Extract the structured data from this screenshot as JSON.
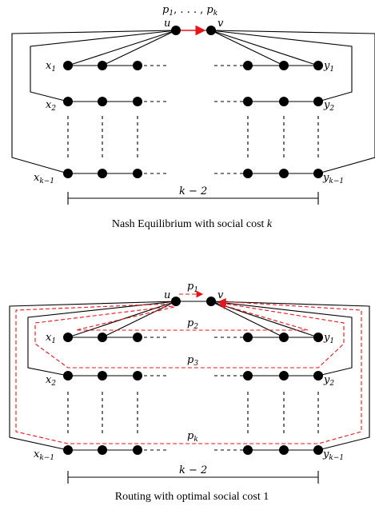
{
  "top": {
    "path_label_main": "p",
    "path_label_sub1": "1",
    "path_label_mid": ", . . . , ",
    "path_label_subk": "k",
    "u": "u",
    "v": "v",
    "x1": "x",
    "x1s": "1",
    "x2": "x",
    "x2s": "2",
    "xk": "x",
    "xks": "k−1",
    "y1": "y",
    "y1s": "1",
    "y2": "y",
    "y2s": "2",
    "yk": "y",
    "yks": "k−1",
    "width_label": "k − 2",
    "caption_prefix": "Nash Equilibrium with social cost ",
    "caption_var": "k"
  },
  "bottom": {
    "u": "u",
    "v": "v",
    "p1": "p",
    "p1s": "1",
    "p2": "p",
    "p2s": "2",
    "p3": "p",
    "p3s": "3",
    "pk": "p",
    "pks": "k",
    "x1": "x",
    "x1s": "1",
    "x2": "x",
    "x2s": "2",
    "xk": "x",
    "xks": "k−1",
    "y1": "y",
    "y1s": "1",
    "y2": "y",
    "y2s": "2",
    "yk": "y",
    "yks": "k−1",
    "width_label": "k − 2",
    "caption": "Routing with optimal social cost 1"
  },
  "colors": {
    "path": "#e8141a",
    "edge": "#000000"
  }
}
